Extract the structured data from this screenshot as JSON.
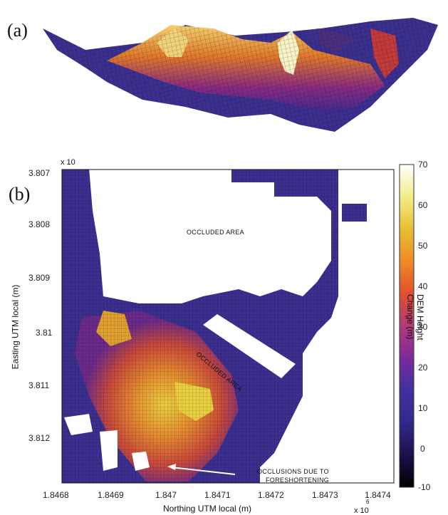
{
  "figure": {
    "panel_a_label": "(a)",
    "panel_b_label": "(b)",
    "y_scale_label": "x 10",
    "x_scale_label": "x 10",
    "x_scale_exp": "6",
    "xlabel": "Northing UTM local (m)",
    "ylabel": "Easting UTM local (m)",
    "colorbar_label": "DEM Height Change (m)",
    "annotations": {
      "occluded_top": "OCCLUDED AREA",
      "occluded_mid": "OCCLUDED AREA",
      "occlusions_line1": "OCCLUSIONS DUE TO",
      "occlusions_line2": "FORESHORTENING"
    },
    "x_ticks": [
      "1.8468",
      "1.8469",
      "1.847",
      "1.8471",
      "1.8472",
      "1.8473",
      "1.8474"
    ],
    "y_ticks": [
      "3.807",
      "3.808",
      "3.809",
      "3.81",
      "3.811",
      "3.812"
    ],
    "colorbar_ticks": [
      "70",
      "60",
      "50",
      "40",
      "30",
      "20",
      "10",
      "0",
      "-10"
    ],
    "colormap": [
      "#000000",
      "#2a1160",
      "#3a2e9a",
      "#6a2a9a",
      "#a23080",
      "#d8452f",
      "#f07820",
      "#e8c030",
      "#f4f0a0",
      "#ffffff"
    ]
  }
}
